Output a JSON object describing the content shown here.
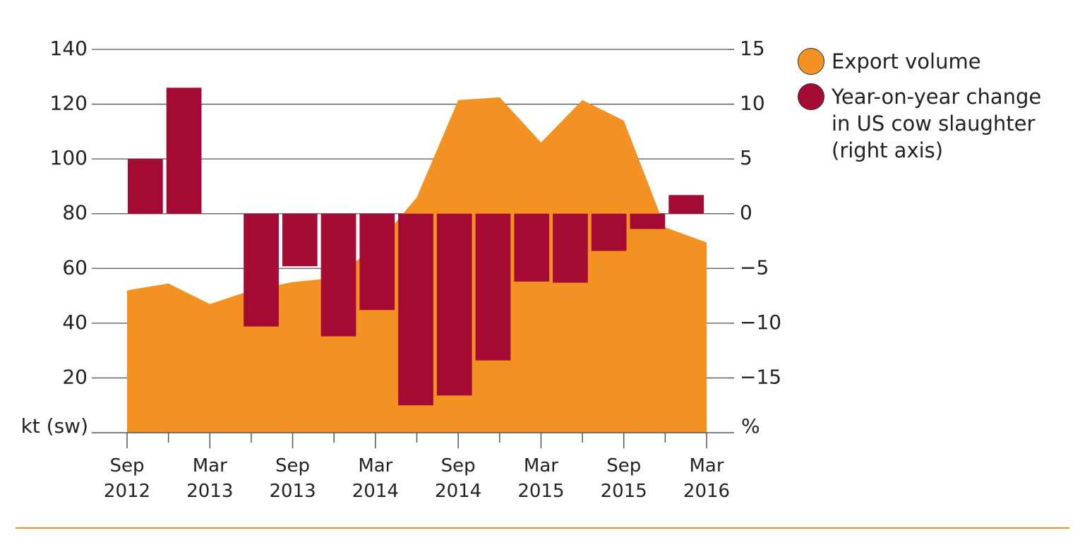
{
  "chart_data": {
    "type": "bar+area",
    "categories": [
      "Sep 2012",
      null,
      "Mar 2013",
      null,
      "Sep 2013",
      null,
      "Mar 2014",
      null,
      "Sep 2014",
      null,
      "Mar 2015",
      null,
      "Sep 2015",
      null,
      "Mar 2016"
    ],
    "series": [
      {
        "name": "Export volume",
        "type": "area",
        "color": "#f39122",
        "axis": "y",
        "values": [
          52,
          54.5,
          47,
          52,
          55,
          56.5,
          68,
          86,
          121.5,
          122.5,
          106,
          121.5,
          114,
          75,
          69.5
        ]
      },
      {
        "name": "Year-on-year change in US cow slaughter (right axis)",
        "type": "bar",
        "color": "#a50a34",
        "axis": "y2",
        "values": [
          5,
          11.5,
          null,
          -10.3,
          -4.8,
          -11.2,
          -8.8,
          -17.5,
          -16.6,
          -13.4,
          -6.2,
          -6.3,
          -3.4,
          -1.4,
          1.7
        ]
      }
    ],
    "ylabel": "kt (sw)",
    "y2label": "%",
    "ylim": [
      0,
      140
    ],
    "yticks": [
      20,
      40,
      60,
      80,
      100,
      120,
      140
    ],
    "y2lim": [
      -20,
      15
    ],
    "y2ticks": [
      {
        "value": -15,
        "label": "−15"
      },
      {
        "value": -10,
        "label": "−10"
      },
      {
        "value": -5,
        "label": "−5"
      },
      0,
      5,
      10,
      15
    ],
    "grid": true,
    "legend": "right"
  }
}
